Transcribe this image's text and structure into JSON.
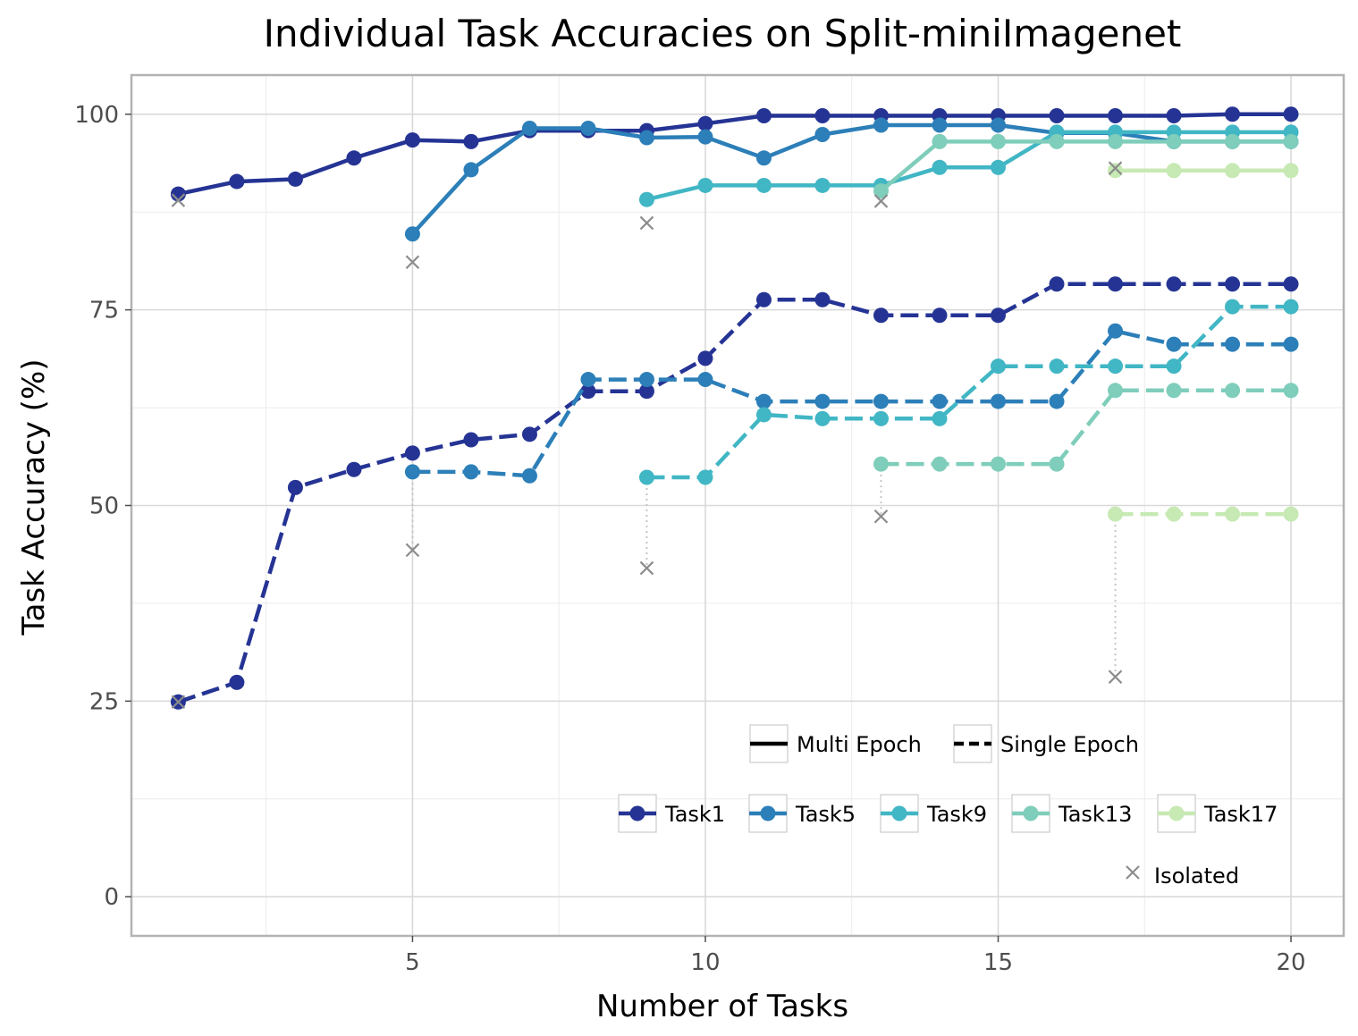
{
  "chart_data": {
    "type": "line",
    "title": "Individual Task Accuracies on Split-miniImagenet",
    "xlabel": "Number of Tasks",
    "ylabel": "Task Accuracy (%)",
    "xlim": [
      0.2,
      20.9
    ],
    "ylim": [
      -5,
      105
    ],
    "xticks": [
      5,
      10,
      15,
      20
    ],
    "yticks": [
      0,
      25,
      50,
      75,
      100
    ],
    "x_minor": [
      2.5,
      7.5,
      12.5,
      17.5
    ],
    "y_minor": [
      12.5,
      37.5,
      62.5,
      87.5
    ],
    "grid": true,
    "legend_styles": [
      {
        "label": "Multi Epoch",
        "dash": "solid"
      },
      {
        "label": "Single Epoch",
        "dash": "dashed"
      }
    ],
    "legend_isolated": "Isolated",
    "isolated_color": "#8c8c8c",
    "series": [
      {
        "name": "Task1",
        "task": 1,
        "color": "#253494",
        "multi": [
          [
            1,
            89.8
          ],
          [
            2,
            91.4
          ],
          [
            3,
            91.7
          ],
          [
            4,
            94.4
          ],
          [
            5,
            96.7
          ],
          [
            6,
            96.5
          ],
          [
            7,
            97.9
          ],
          [
            8,
            97.9
          ],
          [
            9,
            97.9
          ],
          [
            10,
            98.8
          ],
          [
            11,
            99.8
          ],
          [
            12,
            99.8
          ],
          [
            13,
            99.8
          ],
          [
            14,
            99.8
          ],
          [
            15,
            99.8
          ],
          [
            16,
            99.8
          ],
          [
            17,
            99.8
          ],
          [
            18,
            99.8
          ],
          [
            19,
            100.0
          ],
          [
            20,
            100.0
          ]
        ],
        "single": [
          [
            1,
            24.9
          ],
          [
            2,
            27.4
          ],
          [
            3,
            52.3
          ],
          [
            4,
            54.6
          ],
          [
            5,
            56.7
          ],
          [
            6,
            58.4
          ],
          [
            7,
            59.1
          ],
          [
            8,
            64.6
          ],
          [
            9,
            64.6
          ],
          [
            10,
            68.8
          ],
          [
            11,
            76.3
          ],
          [
            12,
            76.3
          ],
          [
            13,
            74.3
          ],
          [
            14,
            74.3
          ],
          [
            15,
            74.3
          ],
          [
            16,
            78.3
          ],
          [
            17,
            78.3
          ],
          [
            18,
            78.3
          ],
          [
            19,
            78.3
          ],
          [
            20,
            78.3
          ]
        ],
        "isolated_multi": 89.0,
        "isolated_single": 24.9
      },
      {
        "name": "Task5",
        "task": 5,
        "color": "#2c7fb8",
        "multi": [
          [
            5,
            84.7
          ],
          [
            6,
            92.9
          ],
          [
            7,
            98.2
          ],
          [
            8,
            98.2
          ],
          [
            9,
            97.0
          ],
          [
            10,
            97.1
          ],
          [
            11,
            94.4
          ],
          [
            12,
            97.4
          ],
          [
            13,
            98.6
          ],
          [
            14,
            98.6
          ],
          [
            15,
            98.6
          ],
          [
            16,
            97.6
          ],
          [
            17,
            97.6
          ],
          [
            18,
            96.5
          ],
          [
            19,
            96.5
          ],
          [
            20,
            96.5
          ]
        ],
        "single": [
          [
            5,
            54.3
          ],
          [
            6,
            54.3
          ],
          [
            7,
            53.8
          ],
          [
            8,
            66.1
          ],
          [
            9,
            66.1
          ],
          [
            10,
            66.1
          ],
          [
            11,
            63.3
          ],
          [
            12,
            63.3
          ],
          [
            13,
            63.3
          ],
          [
            14,
            63.3
          ],
          [
            15,
            63.3
          ],
          [
            16,
            63.3
          ],
          [
            17,
            72.3
          ],
          [
            18,
            70.6
          ],
          [
            19,
            70.6
          ],
          [
            20,
            70.6
          ]
        ],
        "isolated_multi": 81.1,
        "isolated_single": 44.3
      },
      {
        "name": "Task9",
        "task": 9,
        "color": "#41b6c4",
        "multi": [
          [
            9,
            89.1
          ],
          [
            10,
            90.9
          ],
          [
            11,
            90.9
          ],
          [
            12,
            90.9
          ],
          [
            13,
            90.9
          ],
          [
            14,
            93.2
          ],
          [
            15,
            93.2
          ],
          [
            16,
            97.7
          ],
          [
            17,
            97.7
          ],
          [
            18,
            97.7
          ],
          [
            19,
            97.7
          ],
          [
            20,
            97.7
          ]
        ],
        "single": [
          [
            9,
            53.6
          ],
          [
            10,
            53.6
          ],
          [
            11,
            61.6
          ],
          [
            12,
            61.1
          ],
          [
            13,
            61.1
          ],
          [
            14,
            61.1
          ],
          [
            15,
            67.8
          ],
          [
            16,
            67.8
          ],
          [
            17,
            67.8
          ],
          [
            18,
            67.8
          ],
          [
            19,
            75.4
          ],
          [
            20,
            75.4
          ]
        ],
        "isolated_multi": 86.1,
        "isolated_single": 42.0
      },
      {
        "name": "Task13",
        "task": 13,
        "color": "#7fcdbb",
        "multi": [
          [
            13,
            90.2
          ],
          [
            14,
            96.5
          ],
          [
            15,
            96.5
          ],
          [
            16,
            96.5
          ],
          [
            17,
            96.5
          ],
          [
            18,
            96.5
          ],
          [
            19,
            96.5
          ],
          [
            20,
            96.5
          ]
        ],
        "single": [
          [
            13,
            55.3
          ],
          [
            14,
            55.3
          ],
          [
            15,
            55.3
          ],
          [
            16,
            55.3
          ],
          [
            17,
            64.7
          ],
          [
            18,
            64.7
          ],
          [
            19,
            64.7
          ],
          [
            20,
            64.7
          ]
        ],
        "isolated_multi": 88.9,
        "isolated_single": 48.6
      },
      {
        "name": "Task17",
        "task": 17,
        "color": "#c7e9b4",
        "multi": [
          [
            17,
            92.8
          ],
          [
            18,
            92.8
          ],
          [
            19,
            92.8
          ],
          [
            20,
            92.8
          ]
        ],
        "single": [
          [
            17,
            48.9
          ],
          [
            18,
            48.9
          ],
          [
            19,
            48.9
          ],
          [
            20,
            48.9
          ]
        ],
        "isolated_multi": 93.1,
        "isolated_single": 28.1
      }
    ]
  }
}
